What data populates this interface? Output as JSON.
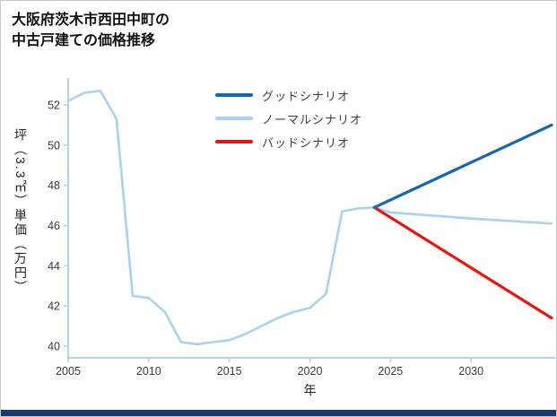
{
  "header": {
    "title_line1": "大阪府茨木市西田中町の",
    "title_line2": "中古戸建ての価格推移"
  },
  "colors": {
    "axis": "#aed3ee",
    "tick_label": "#3a3a3a",
    "bottom_bar": "#17396e"
  },
  "chart_data": {
    "type": "line",
    "title": "大阪府茨木市西田中町の中古戸建ての価格推移",
    "xlabel": "年",
    "ylabel": "坪（3.3㎡）単価（万円）",
    "xlim": [
      2005,
      2035
    ],
    "ylim": [
      39.4,
      53.3
    ],
    "x_ticks": [
      2005,
      2010,
      2015,
      2020,
      2025,
      2030
    ],
    "y_ticks": [
      40,
      42,
      44,
      46,
      48,
      50,
      52
    ],
    "grid": false,
    "legend_position": "upper-center-inside",
    "series": [
      {
        "id": "good",
        "name": "グッドシナリオ",
        "color": "#1767af",
        "width": 3.2,
        "points": [
          [
            2024,
            46.9
          ],
          [
            2035,
            51.0
          ]
        ]
      },
      {
        "id": "normal",
        "name": "ノーマルシナリオ",
        "color": "#a9d2f1",
        "width": 2.6,
        "points": [
          [
            2005,
            52.2
          ],
          [
            2006,
            52.6
          ],
          [
            2007,
            52.7
          ],
          [
            2008,
            51.3
          ],
          [
            2009,
            42.5
          ],
          [
            2010,
            42.4
          ],
          [
            2011,
            41.7
          ],
          [
            2012,
            40.2
          ],
          [
            2013,
            40.1
          ],
          [
            2014,
            40.2
          ],
          [
            2015,
            40.3
          ],
          [
            2016,
            40.6
          ],
          [
            2017,
            41.0
          ],
          [
            2018,
            41.4
          ],
          [
            2019,
            41.7
          ],
          [
            2020,
            41.9
          ],
          [
            2021,
            42.6
          ],
          [
            2022,
            46.7
          ],
          [
            2023,
            46.85
          ],
          [
            2024,
            46.9
          ],
          [
            2025,
            46.65
          ],
          [
            2030,
            46.35
          ],
          [
            2035,
            46.1
          ]
        ]
      },
      {
        "id": "bad",
        "name": "バッドシナリオ",
        "color": "#e7150e",
        "width": 3.2,
        "points": [
          [
            2024,
            46.9
          ],
          [
            2035,
            41.4
          ]
        ]
      }
    ]
  }
}
